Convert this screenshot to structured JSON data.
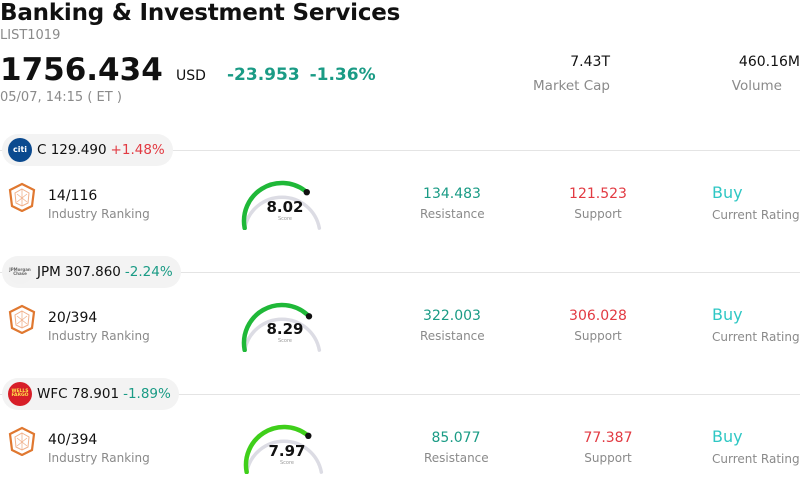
{
  "header": {
    "title": "Banking & Investment Services",
    "code": "LIST1019",
    "price": "1756.434",
    "currency": "USD",
    "change": "-23.953",
    "change_pct": "-1.36%",
    "time": "05/07, 14:15  ( ET )",
    "market_cap": {
      "value": "7.43T",
      "label": "Market Cap"
    },
    "volume": {
      "value": "460.16M",
      "label": "Volume"
    }
  },
  "stocks": [
    {
      "logo": "citi",
      "ticker_price": "C 129.490",
      "change_pct": "+1.48%",
      "rank": "14/116",
      "rank_label": "Industry Ranking",
      "score": "8.02",
      "score_fraction": 0.802,
      "score_label": "Score",
      "resistance": "134.483",
      "resistance_label": "Resistance",
      "support": "121.523",
      "support_label": "Support",
      "rating": "Buy",
      "rating_label": "Current Rating"
    },
    {
      "logo": "JPMorgan Chase",
      "ticker_price": "JPM 307.860",
      "change_pct": "-2.24%",
      "rank": "20/394",
      "rank_label": "Industry Ranking",
      "score": "8.29",
      "score_fraction": 0.829,
      "score_label": "Score",
      "resistance": "322.003",
      "resistance_label": "Resistance",
      "support": "306.028",
      "support_label": "Support",
      "rating": "Buy",
      "rating_label": "Current Rating"
    },
    {
      "logo": "WELLS FARGO",
      "ticker_price": "WFC 78.901",
      "change_pct": "-1.89%",
      "rank": "40/394",
      "rank_label": "Industry Ranking",
      "score": "7.97",
      "score_fraction": 0.797,
      "score_label": "Score",
      "resistance": "85.077",
      "resistance_label": "Resistance",
      "support": "77.387",
      "support_label": "Support",
      "rating": "Buy",
      "rating_label": "Current Rating"
    }
  ],
  "colors": {
    "up": "#e23a42",
    "down": "#1a9b85",
    "rating": "#2fc7c4",
    "gauge_track": "#dcdce4"
  }
}
